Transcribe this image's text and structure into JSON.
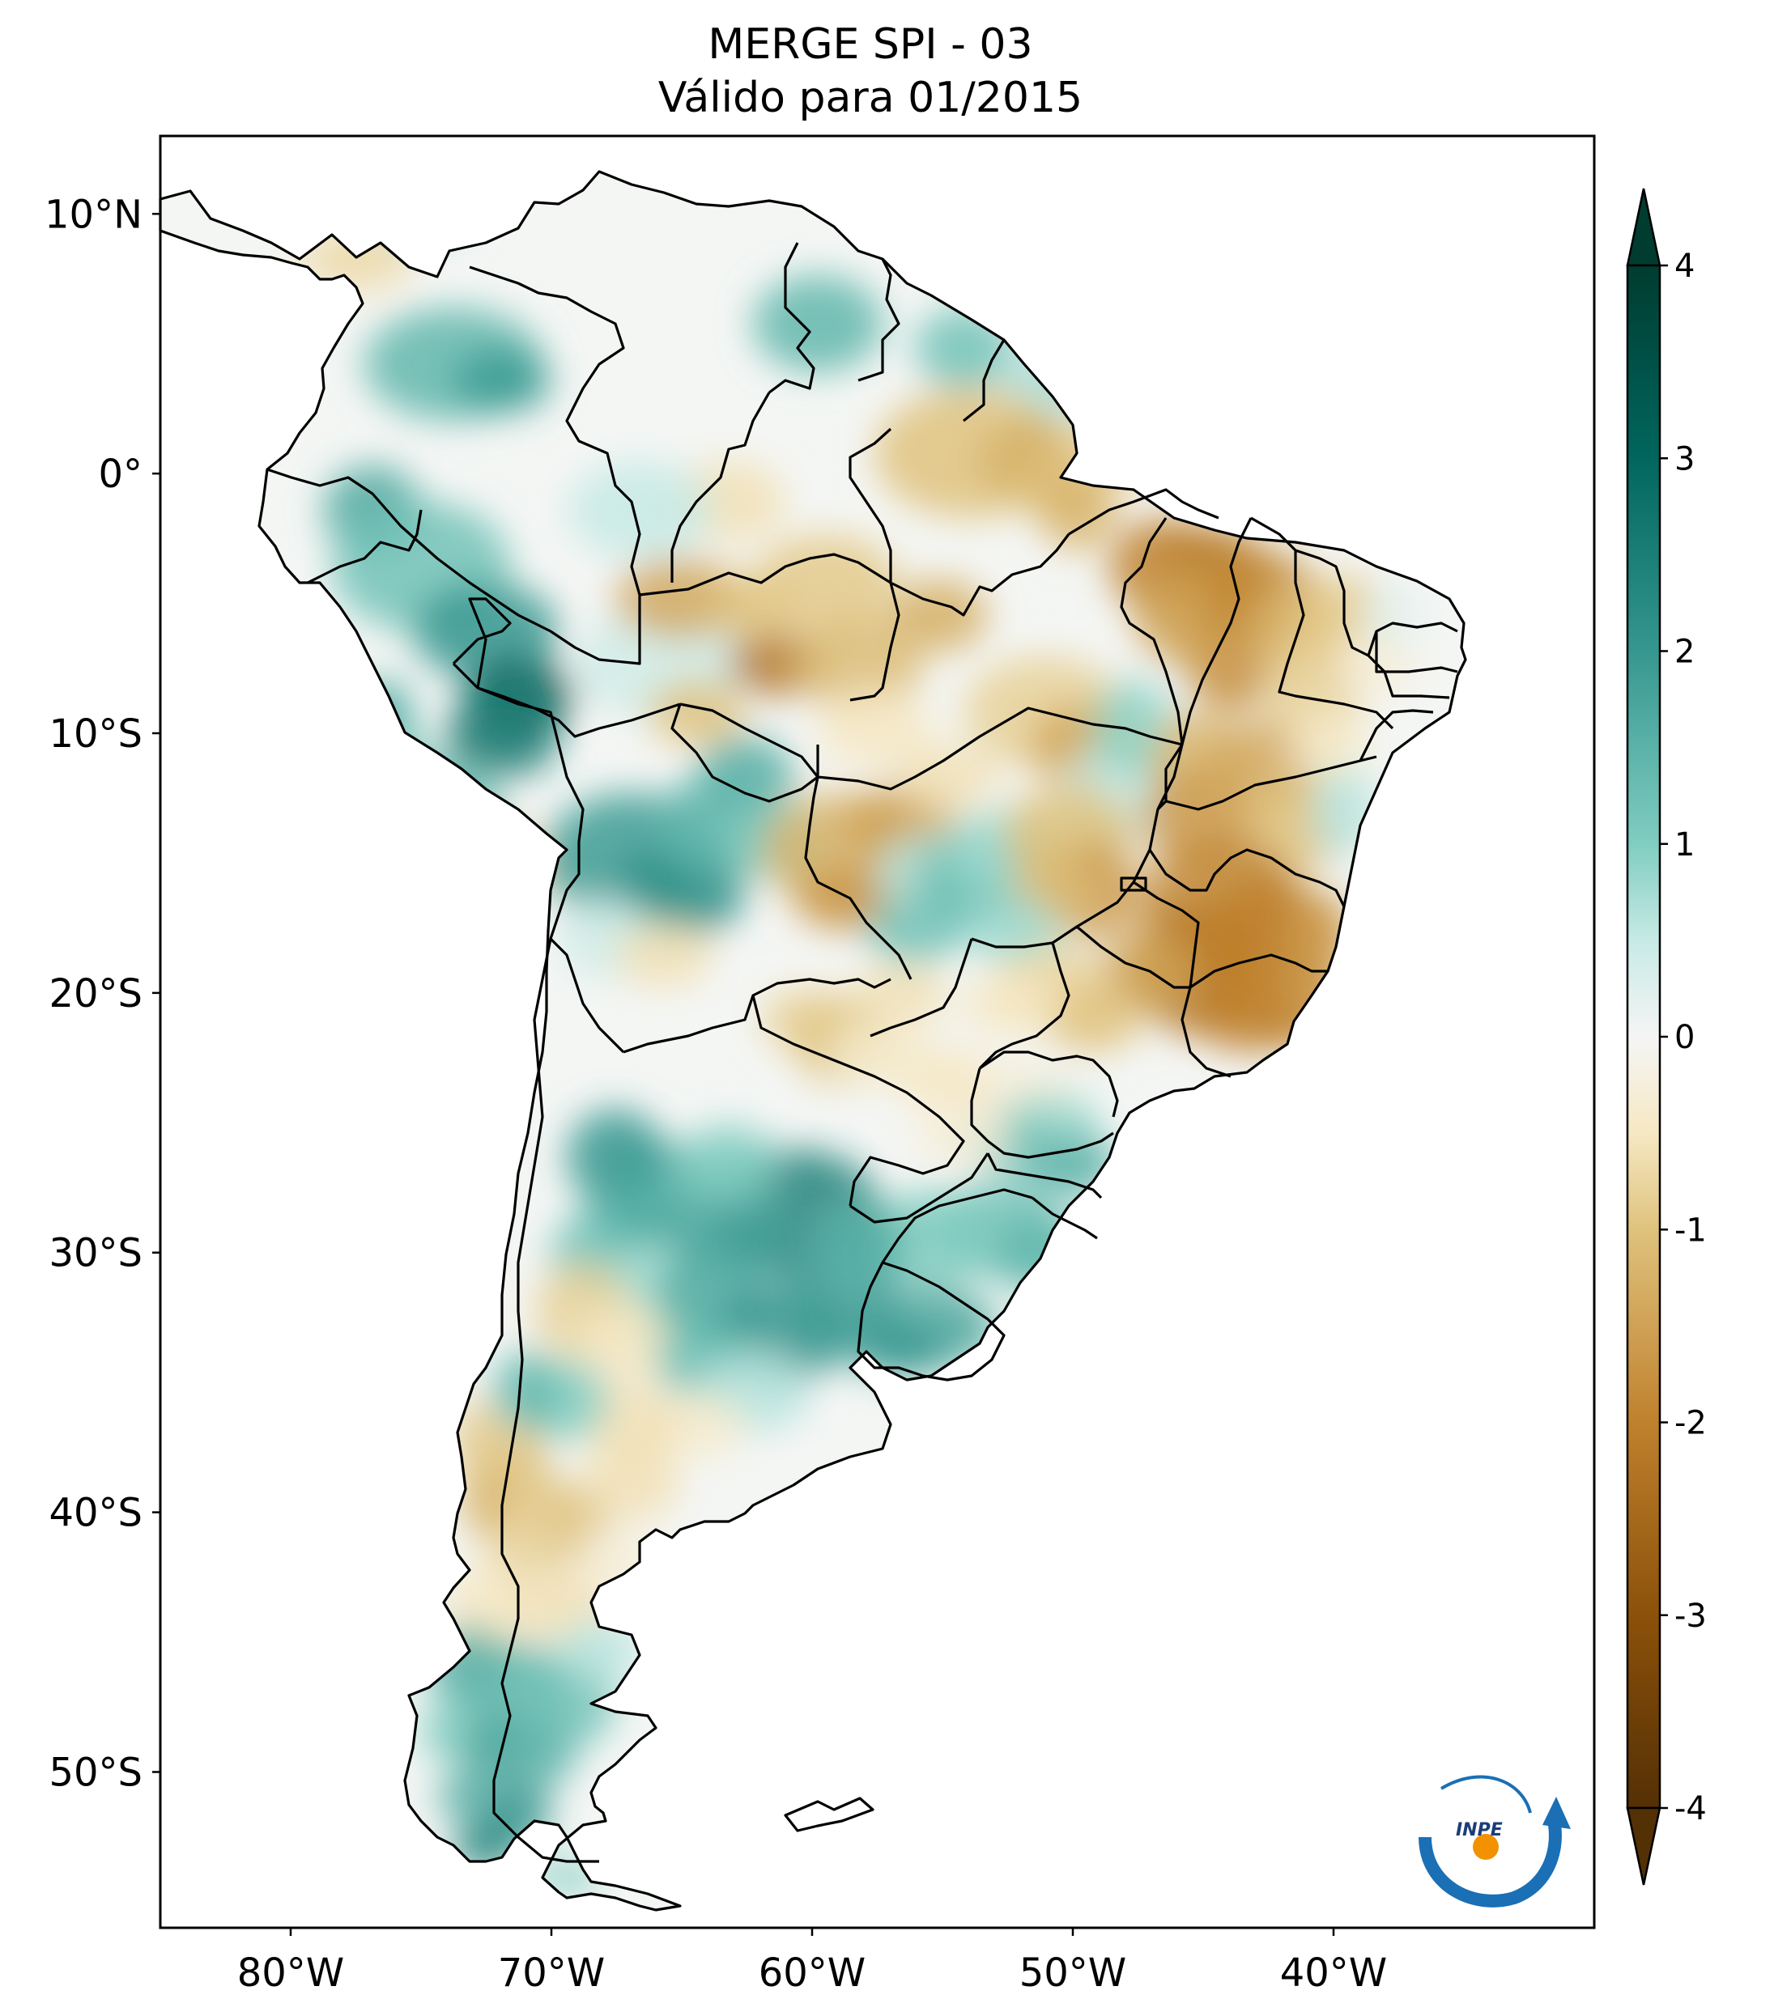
{
  "title": {
    "line1": "MERGE   SPI - 03",
    "line2": "Válido para 01/2015"
  },
  "map": {
    "region": "South America",
    "longitude_range": [
      -85,
      -30
    ],
    "latitude_range": [
      -56,
      13
    ],
    "lon_ticks": [
      {
        "value": -80,
        "label": "80°W"
      },
      {
        "value": -70,
        "label": "70°W"
      },
      {
        "value": -60,
        "label": "60°W"
      },
      {
        "value": -50,
        "label": "50°W"
      },
      {
        "value": -40,
        "label": "40°W"
      }
    ],
    "lat_ticks": [
      {
        "value": 10,
        "label": "10°N"
      },
      {
        "value": 0,
        "label": "0°"
      },
      {
        "value": -10,
        "label": "10°S"
      },
      {
        "value": -20,
        "label": "20°S"
      },
      {
        "value": -30,
        "label": "30°S"
      },
      {
        "value": -40,
        "label": "40°S"
      },
      {
        "value": -50,
        "label": "50°S"
      }
    ]
  },
  "colorbar": {
    "range": [
      -4,
      4
    ],
    "extend": "both",
    "colormap": "BrBG",
    "ticks": [
      {
        "value": 4,
        "label": "4"
      },
      {
        "value": 3,
        "label": "3"
      },
      {
        "value": 2,
        "label": "2"
      },
      {
        "value": 1,
        "label": "1"
      },
      {
        "value": 0,
        "label": "0"
      },
      {
        "value": -1,
        "label": "-1"
      },
      {
        "value": -2,
        "label": "-2"
      },
      {
        "value": -3,
        "label": "-3"
      },
      {
        "value": -4,
        "label": "-4"
      }
    ],
    "stops": [
      {
        "value": -4,
        "color": "#543005"
      },
      {
        "value": -3,
        "color": "#8c510a"
      },
      {
        "value": -2,
        "color": "#bf812d"
      },
      {
        "value": -1,
        "color": "#dfc27d"
      },
      {
        "value": -0.5,
        "color": "#f6e8c3"
      },
      {
        "value": 0,
        "color": "#f5f5f5"
      },
      {
        "value": 0.5,
        "color": "#c7eae5"
      },
      {
        "value": 1,
        "color": "#80cdc1"
      },
      {
        "value": 2,
        "color": "#35978f"
      },
      {
        "value": 3,
        "color": "#01665e"
      },
      {
        "value": 4,
        "color": "#003c30"
      }
    ]
  },
  "logo": {
    "text": "INPE",
    "colors": {
      "arc": "#1a6fb5",
      "dot": "#f39200"
    }
  }
}
